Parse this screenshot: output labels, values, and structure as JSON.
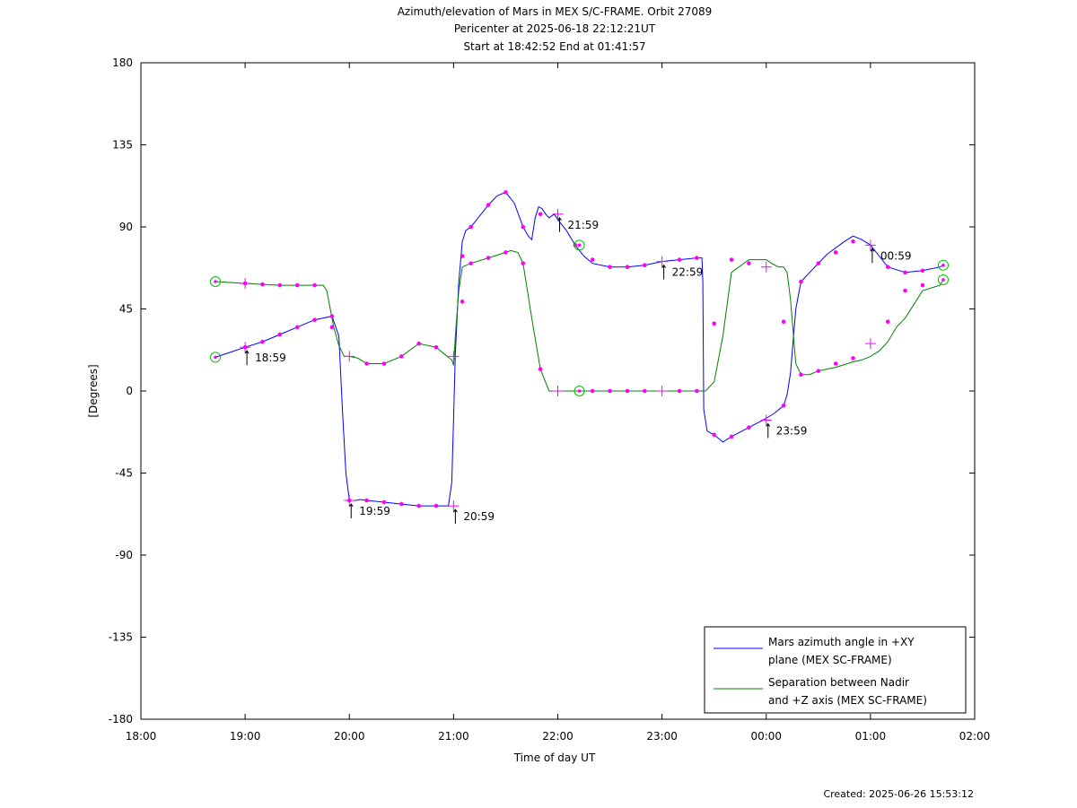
{
  "chart_data": {
    "type": "line",
    "title_lines": [
      "Azimuth/elevation of Mars in MEX S/C-FRAME.  Orbit 27089",
      "Pericenter at 2025-06-18 22:12:21UT",
      "Start at 18:42:52 End at 01:41:57"
    ],
    "xlabel": "Time of day UT",
    "ylabel": "[Degrees]",
    "xlim": [
      0,
      480
    ],
    "ylim": [
      -180,
      180
    ],
    "x_ticks": [
      {
        "v": 0,
        "label": "18:00"
      },
      {
        "v": 60,
        "label": "19:00"
      },
      {
        "v": 120,
        "label": "20:00"
      },
      {
        "v": 180,
        "label": "21:00"
      },
      {
        "v": 240,
        "label": "22:00"
      },
      {
        "v": 300,
        "label": "23:00"
      },
      {
        "v": 360,
        "label": "00:00"
      },
      {
        "v": 420,
        "label": "01:00"
      },
      {
        "v": 480,
        "label": "02:00"
      }
    ],
    "y_ticks": [
      {
        "v": 180,
        "label": "180"
      },
      {
        "v": 135,
        "label": "135"
      },
      {
        "v": 90,
        "label": "90"
      },
      {
        "v": 45,
        "label": "45"
      },
      {
        "v": 0,
        "label": "0"
      },
      {
        "v": -45,
        "label": "-45"
      },
      {
        "v": -90,
        "label": "-90"
      },
      {
        "v": -135,
        "label": "-135"
      },
      {
        "v": -180,
        "label": "-180"
      }
    ],
    "series": [
      {
        "name": "Mars azimuth angle in +XY plane (MEX SC-FRAME)",
        "legend_lines": [
          "Mars azimuth angle in +XY",
          "plane (MEX SC-FRAME)"
        ],
        "color": "#0000ff",
        "x": [
          42.9,
          60,
          70,
          80,
          90,
          100,
          110,
          114,
          116,
          118,
          120,
          122,
          124,
          126,
          130,
          140,
          150,
          160,
          170,
          177,
          179,
          180,
          181,
          183,
          185,
          187,
          190,
          195,
          200,
          205,
          210,
          215,
          220,
          223,
          225,
          227,
          229,
          231,
          233,
          235,
          238,
          240,
          245,
          250,
          255,
          260,
          270,
          280,
          290,
          300,
          310,
          320,
          323,
          323.5,
          324,
          326,
          328,
          330,
          335,
          340,
          350,
          360,
          365,
          370,
          372,
          374,
          377,
          380,
          385,
          395,
          405,
          410,
          415,
          420,
          425,
          430,
          440,
          450,
          460,
          461.9
        ],
        "y": [
          18.5,
          24,
          27,
          31,
          35,
          39,
          41,
          30,
          -10,
          -45,
          -60,
          -60,
          -60,
          -59.5,
          -60,
          -61,
          -62,
          -63,
          -63,
          -63,
          -50,
          -15,
          20,
          60,
          82,
          88,
          90,
          96,
          102,
          107,
          109,
          103,
          90,
          85,
          83,
          95,
          101,
          100,
          97,
          95,
          97,
          94,
          88,
          80,
          74,
          70,
          68,
          68,
          69,
          71,
          72,
          73,
          73,
          60,
          -10,
          -22,
          -23,
          -24,
          -28,
          -25,
          -20,
          -15,
          -12,
          -8,
          -2,
          10,
          45,
          60,
          65,
          75,
          82,
          85,
          83,
          80,
          74,
          68,
          65,
          66,
          68,
          69
        ]
      },
      {
        "name": "Separation between Nadir and +Z axis (MEX SC-FRAME)",
        "legend_lines": [
          "Separation between Nadir",
          "and +Z axis (MEX SC-FRAME)"
        ],
        "color": "#008000",
        "x": [
          42.9,
          60,
          70,
          80,
          90,
          100,
          105,
          107,
          109,
          111,
          114,
          117,
          120,
          125,
          130,
          140,
          150,
          160,
          170,
          175,
          179,
          180,
          181,
          183,
          185,
          190,
          200,
          210,
          213,
          217,
          220,
          225,
          230,
          235,
          240,
          250,
          260,
          270,
          280,
          290,
          300,
          310,
          320,
          322,
          325,
          330,
          335,
          340,
          350,
          360,
          363,
          367,
          370,
          372,
          374,
          377,
          380,
          385,
          390,
          400,
          410,
          415,
          420,
          425,
          430,
          435,
          440,
          450,
          460,
          461.9
        ],
        "y": [
          60,
          59,
          58.5,
          58,
          58,
          58,
          58,
          55,
          45,
          35,
          25,
          19,
          19,
          18,
          15,
          15,
          19,
          26,
          24,
          20,
          17,
          14,
          30,
          55,
          68,
          70,
          73,
          76,
          77,
          76,
          70,
          40,
          12,
          0,
          0,
          0,
          0,
          0,
          0,
          0,
          0,
          0,
          0,
          0,
          0,
          5,
          30,
          65,
          72,
          72,
          70,
          68,
          68,
          65,
          50,
          15,
          9,
          9,
          11,
          13,
          16,
          17,
          19,
          22,
          27,
          35,
          40,
          55,
          58,
          61
        ]
      }
    ],
    "markers": {
      "color": "#ff00ff",
      "dots": [
        {
          "x": 60,
          "y": 24
        },
        {
          "x": 70,
          "y": 27
        },
        {
          "x": 80,
          "y": 31
        },
        {
          "x": 90,
          "y": 35
        },
        {
          "x": 100,
          "y": 39
        },
        {
          "x": 110,
          "y": 41
        },
        {
          "x": 120,
          "y": -60
        },
        {
          "x": 130,
          "y": -60
        },
        {
          "x": 140,
          "y": -61
        },
        {
          "x": 150,
          "y": -62
        },
        {
          "x": 160,
          "y": -63
        },
        {
          "x": 170,
          "y": -63
        },
        {
          "x": 185,
          "y": 74
        },
        {
          "x": 190,
          "y": 90
        },
        {
          "x": 200,
          "y": 102
        },
        {
          "x": 210,
          "y": 109
        },
        {
          "x": 220,
          "y": 90
        },
        {
          "x": 230,
          "y": 97
        },
        {
          "x": 250,
          "y": 80
        },
        {
          "x": 260,
          "y": 72
        },
        {
          "x": 270,
          "y": 68
        },
        {
          "x": 280,
          "y": 68
        },
        {
          "x": 290,
          "y": 69
        },
        {
          "x": 310,
          "y": 72
        },
        {
          "x": 320,
          "y": 73
        },
        {
          "x": 330,
          "y": -24
        },
        {
          "x": 340,
          "y": -25
        },
        {
          "x": 350,
          "y": -20
        },
        {
          "x": 370,
          "y": -8
        },
        {
          "x": 380,
          "y": 60
        },
        {
          "x": 390,
          "y": 70
        },
        {
          "x": 400,
          "y": 76
        },
        {
          "x": 410,
          "y": 82
        },
        {
          "x": 430,
          "y": 68
        },
        {
          "x": 440,
          "y": 65
        },
        {
          "x": 450,
          "y": 66
        },
        {
          "x": 60,
          "y": 59
        },
        {
          "x": 70,
          "y": 58.5
        },
        {
          "x": 80,
          "y": 58
        },
        {
          "x": 90,
          "y": 58
        },
        {
          "x": 100,
          "y": 58
        },
        {
          "x": 110,
          "y": 35
        },
        {
          "x": 130,
          "y": 15
        },
        {
          "x": 140,
          "y": 15
        },
        {
          "x": 150,
          "y": 19
        },
        {
          "x": 160,
          "y": 26
        },
        {
          "x": 170,
          "y": 24
        },
        {
          "x": 185,
          "y": 49
        },
        {
          "x": 190,
          "y": 70
        },
        {
          "x": 200,
          "y": 73
        },
        {
          "x": 210,
          "y": 76
        },
        {
          "x": 220,
          "y": 70
        },
        {
          "x": 230,
          "y": 12
        },
        {
          "x": 260,
          "y": 0
        },
        {
          "x": 270,
          "y": 0
        },
        {
          "x": 280,
          "y": 0
        },
        {
          "x": 290,
          "y": 0
        },
        {
          "x": 310,
          "y": 0
        },
        {
          "x": 320,
          "y": 0
        },
        {
          "x": 330,
          "y": 37
        },
        {
          "x": 340,
          "y": 72
        },
        {
          "x": 350,
          "y": 70
        },
        {
          "x": 370,
          "y": 38
        },
        {
          "x": 380,
          "y": 9
        },
        {
          "x": 390,
          "y": 11
        },
        {
          "x": 400,
          "y": 15
        },
        {
          "x": 410,
          "y": 18
        },
        {
          "x": 430,
          "y": 38
        },
        {
          "x": 440,
          "y": 55
        },
        {
          "x": 450,
          "y": 58
        }
      ],
      "plus": [
        {
          "x": 60,
          "y": 24
        },
        {
          "x": 120,
          "y": -60
        },
        {
          "x": 180,
          "y": -63
        },
        {
          "x": 240,
          "y": 97
        },
        {
          "x": 300,
          "y": 71
        },
        {
          "x": 360,
          "y": -16
        },
        {
          "x": 420,
          "y": 80
        },
        {
          "x": 60,
          "y": 59
        },
        {
          "x": 120,
          "y": 19
        },
        {
          "x": 180,
          "y": 19
        },
        {
          "x": 240,
          "y": 0
        },
        {
          "x": 300,
          "y": 0
        },
        {
          "x": 360,
          "y": 68
        },
        {
          "x": 420,
          "y": 26
        }
      ],
      "circles": [
        {
          "x": 42.9,
          "y": 18.5
        },
        {
          "x": 42.9,
          "y": 60
        },
        {
          "x": 252.4,
          "y": 80
        },
        {
          "x": 252.4,
          "y": 0
        },
        {
          "x": 461.9,
          "y": 69
        },
        {
          "x": 461.9,
          "y": 61
        }
      ]
    },
    "annotations": [
      {
        "x": 60,
        "y": 24,
        "label": "18:59"
      },
      {
        "x": 120,
        "y": -60,
        "label": "19:59"
      },
      {
        "x": 180,
        "y": -63,
        "label": "20:59"
      },
      {
        "x": 240,
        "y": 97,
        "label": "21:59"
      },
      {
        "x": 300,
        "y": 71,
        "label": "22:59"
      },
      {
        "x": 360,
        "y": -16,
        "label": "23:59"
      },
      {
        "x": 420,
        "y": 80,
        "label": "00:59"
      }
    ],
    "legend_position": "bottom-right",
    "grid": false
  },
  "footer": {
    "created": "Created: 2025-06-26 15:53:12"
  }
}
